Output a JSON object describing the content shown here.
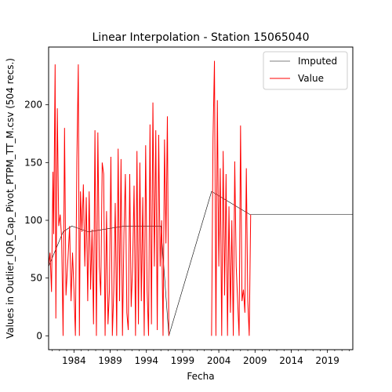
{
  "chart_data": {
    "type": "line",
    "title": "Linear Interpolation - Station 15065040",
    "xlabel": "Fecha",
    "ylabel": "Values in Outlier_IQR_Cap_Pivot_PTPM_TT_M.csv (504 recs.)",
    "xlim": [
      1980.5,
      2022.5
    ],
    "ylim": [
      -12,
      250
    ],
    "x_ticks": [
      1984,
      1989,
      1994,
      1999,
      2004,
      2009,
      2014,
      2019
    ],
    "x_tick_labels": [
      "1984",
      "1989",
      "1994",
      "1999",
      "2004",
      "2009",
      "2014",
      "2019"
    ],
    "y_ticks": [
      0,
      50,
      100,
      150,
      200
    ],
    "y_tick_labels": [
      "0",
      "50",
      "100",
      "150",
      "200"
    ],
    "grid": false,
    "legend_position": "top-right",
    "colors": {
      "imputed": "#000000",
      "value": "#ff0000"
    },
    "series": [
      {
        "name": "Imputed",
        "x": [
          1980.5,
          1982.5,
          1983.7,
          1986.0,
          1991.0,
          1996.0,
          1997.1,
          2003.0,
          2008.3,
          2022.5
        ],
        "values": [
          60,
          90,
          95,
          90,
          95,
          95,
          0,
          125,
          105,
          105
        ]
      },
      {
        "name": "Value",
        "segments": [
          {
            "x": [
              1980.5,
              1980.7,
              1980.9,
              1981.1,
              1981.2,
              1981.4,
              1981.5,
              1981.7,
              1981.9,
              1982.1,
              1982.3,
              1982.5,
              1982.7,
              1982.9,
              1983.2,
              1983.4,
              1983.6,
              1983.8,
              1984.0,
              1984.2,
              1984.4,
              1984.6,
              1984.75,
              1984.9,
              1985.1,
              1985.3,
              1985.5,
              1985.7,
              1985.9,
              1986.1,
              1986.3,
              1986.5,
              1986.7,
              1986.9,
              1987.1,
              1987.3,
              1987.5,
              1987.7,
              1987.9,
              1988.1,
              1988.3,
              1988.5,
              1988.7,
              1988.9,
              1989.1,
              1989.3,
              1989.5,
              1989.7,
              1989.9,
              1990.1,
              1990.3,
              1990.5,
              1990.7,
              1990.9,
              1991.1,
              1991.3,
              1991.5,
              1991.7,
              1991.9,
              1992.1,
              1992.3,
              1992.5,
              1992.7,
              1992.9,
              1993.1,
              1993.3,
              1993.5,
              1993.7,
              1993.9,
              1994.1,
              1994.3,
              1994.5,
              1994.7,
              1994.9,
              1995.1,
              1995.3,
              1995.5,
              1995.7,
              1995.9,
              1996.1,
              1996.3,
              1996.5,
              1996.7,
              1996.9,
              1997.1
            ],
            "values": [
              60,
              72,
              38,
              142,
              88,
              235,
              15,
              197,
              95,
              105,
              84,
              0,
              180,
              35,
              70,
              95,
              30,
              72,
              40,
              0,
              152,
              235,
              0,
              125,
              90,
              131,
              60,
              120,
              30,
              125,
              40,
              92,
              10,
              178,
              0,
              176,
              60,
              35,
              150,
              140,
              0,
              108,
              10,
              40,
              155,
              0,
              40,
              115,
              0,
              162,
              30,
              153,
              0,
              88,
              140,
              20,
              5,
              140,
              25,
              60,
              130,
              0,
              160,
              10,
              150,
              30,
              120,
              0,
              165,
              40,
              0,
              183,
              10,
              202,
              60,
              178,
              5,
              174,
              60,
              100,
              0,
              170,
              80,
              190,
              0
            ]
          },
          {
            "x": [
              2003.0,
              2003.2,
              2003.4,
              2003.6,
              2003.8,
              2004.0,
              2004.2,
              2004.4,
              2004.6,
              2004.8,
              2005.0,
              2005.2,
              2005.4,
              2005.6,
              2005.8,
              2006.0,
              2006.2,
              2006.4,
              2006.6,
              2006.8,
              2007.0,
              2007.2,
              2007.4,
              2007.6,
              2007.8,
              2008.0,
              2008.2,
              2008.4
            ],
            "values": [
              0,
              171,
              238,
              0,
              204,
              60,
              145,
              0,
              160,
              35,
              140,
              0,
              112,
              20,
              100,
              0,
              151,
              60,
              30,
              0,
              182,
              30,
              40,
              20,
              145,
              30,
              0,
              105
            ]
          }
        ]
      }
    ]
  }
}
